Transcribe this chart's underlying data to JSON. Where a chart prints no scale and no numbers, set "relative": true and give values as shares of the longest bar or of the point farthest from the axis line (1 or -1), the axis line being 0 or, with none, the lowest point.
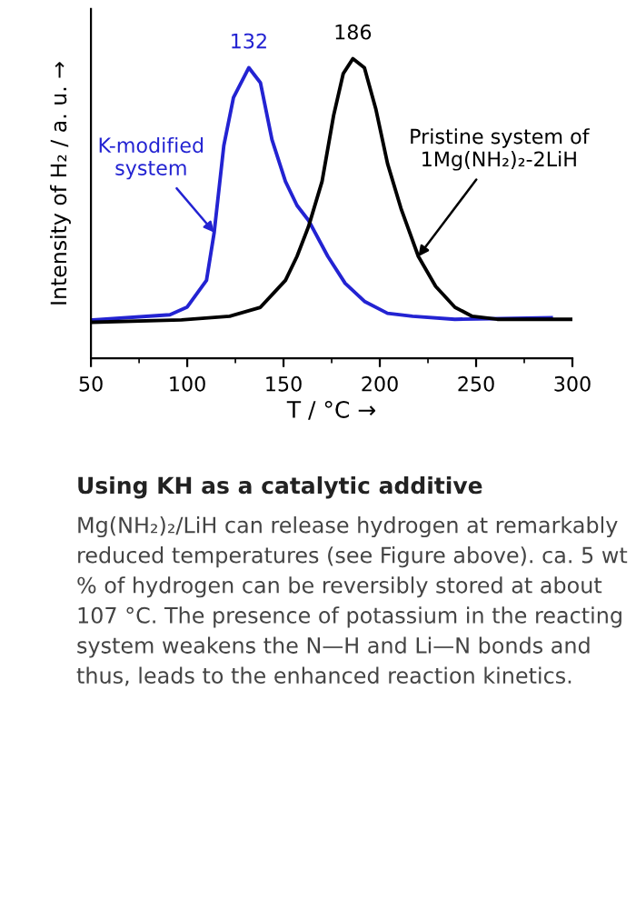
{
  "chart_data": {
    "type": "line",
    "relative": true,
    "xlabel": "T / °C →",
    "ylabel": "Intensity of H₂ / a. u. →",
    "xlim": [
      50,
      300
    ],
    "xticks": [
      50,
      100,
      150,
      200,
      250,
      300
    ],
    "grid": false,
    "legend": false,
    "marker": "none",
    "line_style": "solid",
    "series": [
      {
        "color": "#2323d2",
        "x": [
          51,
          91,
          100,
          110,
          114,
          119,
          124,
          132,
          138,
          144,
          151,
          157,
          163,
          173,
          182,
          192,
          204,
          217,
          239,
          289
        ],
        "values": [
          0.128,
          0.145,
          0.171,
          0.26,
          0.42,
          0.71,
          0.87,
          0.97,
          0.92,
          0.73,
          0.59,
          0.51,
          0.46,
          0.34,
          0.25,
          0.19,
          0.15,
          0.14,
          0.13,
          0.135
        ]
      },
      {
        "color": "#000000",
        "x": [
          51,
          97,
          122,
          138,
          151,
          157,
          163,
          170,
          176,
          181,
          186,
          192,
          198,
          204,
          211,
          220,
          229,
          239,
          248,
          261,
          300
        ],
        "values": [
          0.12,
          0.128,
          0.14,
          0.17,
          0.26,
          0.34,
          0.44,
          0.59,
          0.81,
          0.95,
          1.0,
          0.97,
          0.83,
          0.65,
          0.5,
          0.34,
          0.24,
          0.17,
          0.14,
          0.13,
          0.13
        ]
      }
    ],
    "annotations": [
      {
        "text": "132",
        "x": 132,
        "y": 0.97
      },
      {
        "text": "186",
        "x": 186,
        "y": 1.0
      },
      {
        "text": "K-modified\nsystem",
        "x": 114,
        "y": 0.42
      },
      {
        "text": "Pristine system of\n1Mg(NH₂)₂-2LiH",
        "x": 220,
        "y": 0.34
      },
      "Using KH as a catalytic additive",
      "Mg(NH₂)₂/LiH can release hydrogen at remarkably reduced temperatures (see Figure above). ca. 5 wt % of hydrogen can be reversibly stored at about 107 °C. The presence of potassium in the reacting system weakens the N—H and Li—N bonds and thus, leads to the enhanced reaction kinetics."
    ]
  }
}
